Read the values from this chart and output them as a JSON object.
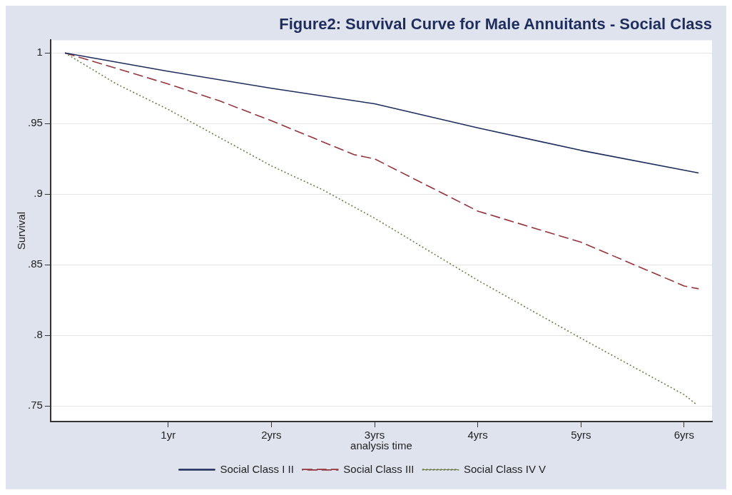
{
  "chart_data": {
    "type": "line",
    "title": "Figure2: Survival Curve for Male Annuitants - Social Class",
    "xlabel": "analysis time",
    "ylabel": "Survival",
    "xlim": [
      -0.14,
      6.27
    ],
    "ylim": [
      0.739,
      1.009
    ],
    "xticks": [
      {
        "value": 1,
        "label": "1yr"
      },
      {
        "value": 2,
        "label": "2yrs"
      },
      {
        "value": 3,
        "label": "3yrs"
      },
      {
        "value": 4,
        "label": "4yrs"
      },
      {
        "value": 5,
        "label": "5yrs"
      },
      {
        "value": 6,
        "label": "6yrs"
      }
    ],
    "yticks": [
      {
        "value": 0.75,
        "label": ".75"
      },
      {
        "value": 0.8,
        "label": ".8"
      },
      {
        "value": 0.85,
        "label": ".85"
      },
      {
        "value": 0.9,
        "label": ".9"
      },
      {
        "value": 0.95,
        "label": ".95"
      },
      {
        "value": 1,
        "label": "1"
      }
    ],
    "grid": "y",
    "legend": "bottom",
    "marker": "none",
    "series": [
      {
        "name": "Social Class I II",
        "color": "#1f2d5c",
        "line_style": "solid",
        "x": [
          0,
          1,
          2,
          3,
          4,
          5,
          6.14
        ],
        "values": [
          1,
          0.987,
          0.975,
          0.964,
          0.947,
          0.931,
          0.915
        ]
      },
      {
        "name": "Social Class III",
        "color": "#93343c",
        "line_style": "dashed",
        "x": [
          0,
          1,
          1.5,
          2,
          2.8,
          3,
          4,
          5,
          6,
          6.14
        ],
        "values": [
          1,
          0.978,
          0.966,
          0.952,
          0.928,
          0.925,
          0.888,
          0.866,
          0.835,
          0.833
        ]
      },
      {
        "name": "Social Class IV V",
        "color": "#6b7d4a",
        "line_style": "dotted",
        "x": [
          0,
          0.5,
          1,
          1.5,
          2,
          2.5,
          3,
          4,
          5,
          6,
          6.12
        ],
        "values": [
          1,
          0.978,
          0.96,
          0.94,
          0.92,
          0.903,
          0.883,
          0.839,
          0.798,
          0.758,
          0.751
        ]
      }
    ]
  }
}
